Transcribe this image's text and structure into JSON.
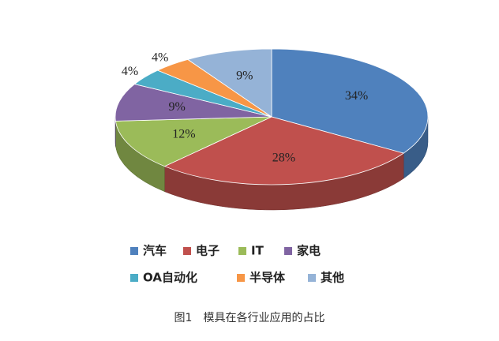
{
  "chart_data": {
    "type": "pie",
    "title": "图1　模具在各行业应用的占比",
    "categories": [
      "汽车",
      "电子",
      "IT",
      "家电",
      "OA自动化",
      "半导体",
      "其他"
    ],
    "values": [
      34,
      28,
      12,
      9,
      4,
      4,
      9
    ],
    "value_labels": [
      "34%",
      "28%",
      "12%",
      "9%",
      "4%",
      "4%",
      "9%"
    ],
    "colors": [
      "#4f81bd",
      "#c0504d",
      "#9bbb59",
      "#8064a2",
      "#4bacc6",
      "#f79646",
      "#95b3d7"
    ]
  }
}
